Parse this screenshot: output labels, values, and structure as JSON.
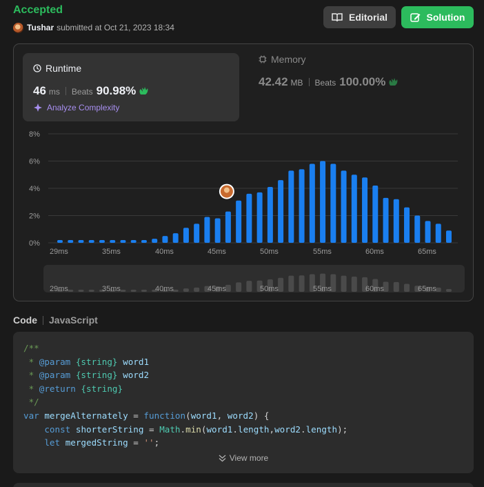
{
  "submission": {
    "status": "Accepted",
    "user": "Tushar",
    "submitted_text": "submitted at Oct 21, 2023 18:34"
  },
  "buttons": {
    "editorial": "Editorial",
    "solution": "Solution"
  },
  "runtime": {
    "title": "Runtime",
    "value": "46",
    "unit": "ms",
    "beats_label": "Beats",
    "beats_value": "90.98%",
    "analyze": "Analyze Complexity"
  },
  "memory": {
    "title": "Memory",
    "value": "42.42",
    "unit": "MB",
    "beats_label": "Beats",
    "beats_value": "100.00%"
  },
  "colors": {
    "accent_green": "#2cbb5d",
    "bar_blue": "#1a7ff0",
    "analyze_purple": "#a88ff0"
  },
  "chart_data": {
    "type": "bar",
    "ylabel_ticks": [
      "8%",
      "6%",
      "4%",
      "2%",
      "0%"
    ],
    "ylim": [
      0,
      8
    ],
    "xtick_labels": [
      "29ms",
      "35ms",
      "40ms",
      "45ms",
      "50ms",
      "55ms",
      "60ms",
      "65ms"
    ],
    "values": [
      0.2,
      0.2,
      0.2,
      0.2,
      0.2,
      0.2,
      0.2,
      0.2,
      0.2,
      0.3,
      0.5,
      0.7,
      1.1,
      1.4,
      1.9,
      1.8,
      2.3,
      3.1,
      3.6,
      3.7,
      4.1,
      4.6,
      5.3,
      5.4,
      5.8,
      6.0,
      5.8,
      5.3,
      5.0,
      4.8,
      4.2,
      3.3,
      3.2,
      2.6,
      2.0,
      1.6,
      1.4,
      0.9
    ],
    "highlight_index": 16,
    "grid": true
  },
  "code": {
    "label": "Code",
    "language": "JavaScript",
    "view_more": "View more"
  }
}
